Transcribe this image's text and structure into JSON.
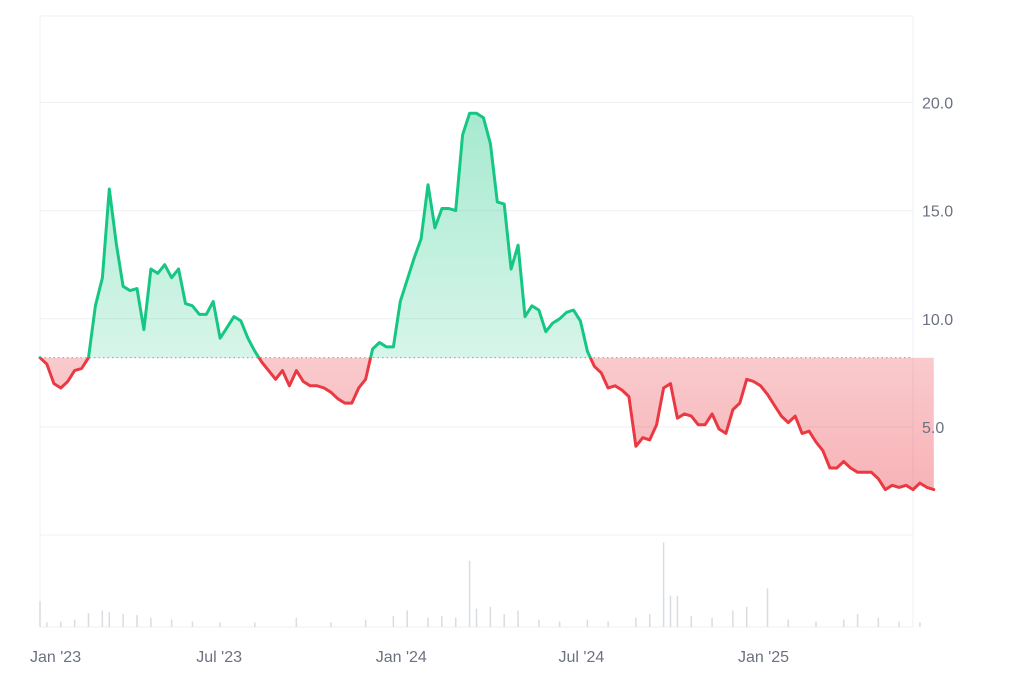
{
  "chart_data": {
    "type": "line",
    "title": "",
    "xlabel": "",
    "ylabel": "",
    "baseline": 8.2,
    "ylim": [
      0,
      24
    ],
    "y_ticks": [
      {
        "value": 5,
        "label": "5.0"
      },
      {
        "value": 10,
        "label": "10.0"
      },
      {
        "value": 15,
        "label": "15.0"
      },
      {
        "value": 20,
        "label": "20.0"
      }
    ],
    "x_domain": [
      "2023-01-01",
      "2025-06-01"
    ],
    "x_ticks": [
      {
        "date": "2023-01-01",
        "label": "Jan '23"
      },
      {
        "date": "2023-07-01",
        "label": "Jul '23"
      },
      {
        "date": "2024-01-01",
        "label": "Jan '24"
      },
      {
        "date": "2024-07-01",
        "label": "Jul '24"
      },
      {
        "date": "2025-01-01",
        "label": "Jan '25"
      }
    ],
    "colors": {
      "up": "#16c784",
      "down": "#ea3943",
      "up_fill": "#16c784",
      "down_fill": "#ea3943",
      "grid": "#eef0f3",
      "volume": "#d9dce1",
      "baseline": "#9ca3af"
    },
    "series": [
      {
        "points": [
          [
            "2023-01-01",
            8.2
          ],
          [
            "2023-01-08",
            7.9
          ],
          [
            "2023-01-15",
            7.0
          ],
          [
            "2023-01-22",
            6.8
          ],
          [
            "2023-01-29",
            7.1
          ],
          [
            "2023-02-05",
            7.6
          ],
          [
            "2023-02-12",
            7.7
          ],
          [
            "2023-02-19",
            8.2
          ],
          [
            "2023-02-26",
            10.6
          ],
          [
            "2023-03-05",
            11.9
          ],
          [
            "2023-03-12",
            16.0
          ],
          [
            "2023-03-19",
            13.5
          ],
          [
            "2023-03-26",
            11.5
          ],
          [
            "2023-04-02",
            11.3
          ],
          [
            "2023-04-09",
            11.4
          ],
          [
            "2023-04-16",
            9.5
          ],
          [
            "2023-04-23",
            12.3
          ],
          [
            "2023-04-30",
            12.1
          ],
          [
            "2023-05-07",
            12.5
          ],
          [
            "2023-05-14",
            11.9
          ],
          [
            "2023-05-21",
            12.3
          ],
          [
            "2023-05-28",
            10.7
          ],
          [
            "2023-06-04",
            10.6
          ],
          [
            "2023-06-11",
            10.2
          ],
          [
            "2023-06-18",
            10.2
          ],
          [
            "2023-06-25",
            10.8
          ],
          [
            "2023-07-02",
            9.1
          ],
          [
            "2023-07-09",
            9.6
          ],
          [
            "2023-07-16",
            10.1
          ],
          [
            "2023-07-23",
            9.9
          ],
          [
            "2023-07-30",
            9.1
          ],
          [
            "2023-08-06",
            8.5
          ],
          [
            "2023-08-13",
            8.0
          ],
          [
            "2023-08-20",
            7.6
          ],
          [
            "2023-08-27",
            7.2
          ],
          [
            "2023-09-03",
            7.6
          ],
          [
            "2023-09-10",
            6.9
          ],
          [
            "2023-09-17",
            7.6
          ],
          [
            "2023-09-24",
            7.1
          ],
          [
            "2023-10-01",
            6.9
          ],
          [
            "2023-10-08",
            6.9
          ],
          [
            "2023-10-15",
            6.8
          ],
          [
            "2023-10-22",
            6.6
          ],
          [
            "2023-10-29",
            6.3
          ],
          [
            "2023-11-05",
            6.1
          ],
          [
            "2023-11-12",
            6.1
          ],
          [
            "2023-11-19",
            6.8
          ],
          [
            "2023-11-26",
            7.2
          ],
          [
            "2023-12-03",
            8.6
          ],
          [
            "2023-12-10",
            8.9
          ],
          [
            "2023-12-17",
            8.7
          ],
          [
            "2023-12-24",
            8.7
          ],
          [
            "2023-12-31",
            10.8
          ],
          [
            "2024-01-07",
            11.8
          ],
          [
            "2024-01-14",
            12.8
          ],
          [
            "2024-01-21",
            13.7
          ],
          [
            "2024-01-28",
            16.2
          ],
          [
            "2024-02-04",
            14.2
          ],
          [
            "2024-02-11",
            15.1
          ],
          [
            "2024-02-18",
            15.1
          ],
          [
            "2024-02-25",
            15.0
          ],
          [
            "2024-03-03",
            18.5
          ],
          [
            "2024-03-10",
            19.5
          ],
          [
            "2024-03-17",
            19.5
          ],
          [
            "2024-03-24",
            19.3
          ],
          [
            "2024-03-31",
            18.1
          ],
          [
            "2024-04-07",
            15.4
          ],
          [
            "2024-04-14",
            15.3
          ],
          [
            "2024-04-21",
            12.3
          ],
          [
            "2024-04-28",
            13.4
          ],
          [
            "2024-05-05",
            10.1
          ],
          [
            "2024-05-12",
            10.6
          ],
          [
            "2024-05-19",
            10.4
          ],
          [
            "2024-05-26",
            9.4
          ],
          [
            "2024-06-02",
            9.8
          ],
          [
            "2024-06-09",
            10.0
          ],
          [
            "2024-06-16",
            10.3
          ],
          [
            "2024-06-23",
            10.4
          ],
          [
            "2024-06-30",
            9.9
          ],
          [
            "2024-07-07",
            8.5
          ],
          [
            "2024-07-14",
            7.8
          ],
          [
            "2024-07-21",
            7.5
          ],
          [
            "2024-07-28",
            6.8
          ],
          [
            "2024-08-04",
            6.9
          ],
          [
            "2024-08-11",
            6.7
          ],
          [
            "2024-08-18",
            6.4
          ],
          [
            "2024-08-25",
            4.1
          ],
          [
            "2024-09-01",
            4.5
          ],
          [
            "2024-09-08",
            4.4
          ],
          [
            "2024-09-15",
            5.1
          ],
          [
            "2024-09-22",
            6.8
          ],
          [
            "2024-09-29",
            7.0
          ],
          [
            "2024-10-06",
            5.4
          ],
          [
            "2024-10-13",
            5.6
          ],
          [
            "2024-10-20",
            5.5
          ],
          [
            "2024-10-27",
            5.1
          ],
          [
            "2024-11-03",
            5.1
          ],
          [
            "2024-11-10",
            5.6
          ],
          [
            "2024-11-17",
            4.9
          ],
          [
            "2024-11-24",
            4.7
          ],
          [
            "2024-12-01",
            5.8
          ],
          [
            "2024-12-08",
            6.1
          ],
          [
            "2024-12-15",
            7.2
          ],
          [
            "2024-12-22",
            7.1
          ],
          [
            "2024-12-29",
            6.9
          ],
          [
            "2025-01-05",
            6.5
          ],
          [
            "2025-01-12",
            6.0
          ],
          [
            "2025-01-19",
            5.5
          ],
          [
            "2025-01-26",
            5.2
          ],
          [
            "2025-02-02",
            5.5
          ],
          [
            "2025-02-09",
            4.7
          ],
          [
            "2025-02-16",
            4.8
          ],
          [
            "2025-02-23",
            4.3
          ],
          [
            "2025-03-02",
            3.9
          ],
          [
            "2025-03-09",
            3.1
          ],
          [
            "2025-03-16",
            3.1
          ],
          [
            "2025-03-23",
            3.4
          ],
          [
            "2025-03-30",
            3.1
          ],
          [
            "2025-04-06",
            2.9
          ],
          [
            "2025-04-13",
            2.9
          ],
          [
            "2025-04-20",
            2.9
          ],
          [
            "2025-04-27",
            2.6
          ],
          [
            "2025-05-04",
            2.1
          ],
          [
            "2025-05-11",
            2.3
          ],
          [
            "2025-05-18",
            2.2
          ],
          [
            "2025-05-25",
            2.3
          ],
          [
            "2025-06-01",
            2.1
          ],
          [
            "2025-06-08",
            2.4
          ],
          [
            "2025-06-15",
            2.2
          ],
          [
            "2025-06-22",
            2.1
          ]
        ]
      }
    ],
    "volume": [
      [
        "2023-01-01",
        0.28
      ],
      [
        "2023-01-08",
        0.05
      ],
      [
        "2023-01-22",
        0.06
      ],
      [
        "2023-02-05",
        0.08
      ],
      [
        "2023-02-19",
        0.15
      ],
      [
        "2023-03-05",
        0.18
      ],
      [
        "2023-03-12",
        0.16
      ],
      [
        "2023-03-26",
        0.14
      ],
      [
        "2023-04-09",
        0.13
      ],
      [
        "2023-04-23",
        0.1
      ],
      [
        "2023-05-14",
        0.08
      ],
      [
        "2023-06-04",
        0.06
      ],
      [
        "2023-07-02",
        0.05
      ],
      [
        "2023-08-06",
        0.05
      ],
      [
        "2023-09-17",
        0.1
      ],
      [
        "2023-10-22",
        0.05
      ],
      [
        "2023-11-26",
        0.08
      ],
      [
        "2023-12-24",
        0.12
      ],
      [
        "2024-01-07",
        0.18
      ],
      [
        "2024-01-28",
        0.1
      ],
      [
        "2024-02-11",
        0.12
      ],
      [
        "2024-02-25",
        0.1
      ],
      [
        "2024-03-10",
        0.72
      ],
      [
        "2024-03-17",
        0.2
      ],
      [
        "2024-03-31",
        0.22
      ],
      [
        "2024-04-14",
        0.14
      ],
      [
        "2024-04-28",
        0.18
      ],
      [
        "2024-05-19",
        0.08
      ],
      [
        "2024-06-09",
        0.06
      ],
      [
        "2024-07-07",
        0.08
      ],
      [
        "2024-07-28",
        0.06
      ],
      [
        "2024-08-25",
        0.1
      ],
      [
        "2024-09-08",
        0.14
      ],
      [
        "2024-09-22",
        0.92
      ],
      [
        "2024-09-29",
        0.34
      ],
      [
        "2024-10-06",
        0.34
      ],
      [
        "2024-10-20",
        0.12
      ],
      [
        "2024-11-10",
        0.1
      ],
      [
        "2024-12-01",
        0.18
      ],
      [
        "2024-12-15",
        0.22
      ],
      [
        "2025-01-05",
        0.42
      ],
      [
        "2025-01-26",
        0.08
      ],
      [
        "2025-02-23",
        0.06
      ],
      [
        "2025-03-23",
        0.08
      ],
      [
        "2025-04-06",
        0.14
      ],
      [
        "2025-04-27",
        0.1
      ],
      [
        "2025-05-18",
        0.06
      ],
      [
        "2025-06-08",
        0.05
      ]
    ]
  }
}
